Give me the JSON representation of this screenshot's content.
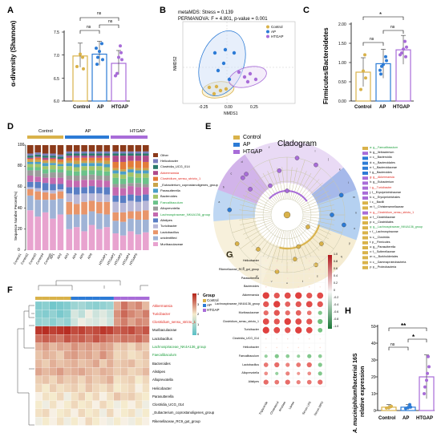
{
  "panels": {
    "A": "A",
    "B": "B",
    "C": "C",
    "D": "D",
    "E": "E",
    "F": "F",
    "G": "G",
    "H": "H"
  },
  "groups": [
    "Control",
    "AP",
    "HTGAP"
  ],
  "colors": {
    "control": "#d9b24a",
    "ap": "#2c7bd6",
    "htgap": "#a86cd8",
    "dark_red": "#8b1a1a",
    "green_sig": "#1a9e3a",
    "red_sig": "#e0241b"
  },
  "panelA": {
    "ylabel": "α-diversity (Shannon)",
    "ylim": [
      6.0,
      7.5
    ],
    "yticks": [
      "6.0",
      "6.5",
      "7.0",
      "7.5"
    ],
    "means": [
      6.98,
      7.02,
      6.82
    ],
    "sig": [
      "ns",
      "ns",
      "ns"
    ]
  },
  "panelB": {
    "line1": "metaMDS: Stress = 0.139",
    "line2": "PERMANOVA: F = 4.801, p-value = 0.001",
    "xlabel": "NMDS1",
    "ylabel": "NMDS2",
    "xticks": [
      "-0.25",
      "0.00",
      "0.25"
    ],
    "legend": [
      "Control",
      "AP",
      "HTGAP"
    ]
  },
  "panelC": {
    "ylabel": "Firmicutes/Bacteroidetes",
    "ylim": [
      0,
      2.0
    ],
    "yticks": [
      "0.00",
      "0.25",
      "0.50",
      "0.75",
      "1.00",
      "1.25",
      "1.50",
      "1.75",
      "2.00"
    ],
    "means": [
      0.75,
      0.97,
      1.33
    ],
    "sig": [
      "ns",
      "ns",
      "*"
    ]
  },
  "panelD": {
    "ylabel": "Sequence Number Percent(%)",
    "yticks": [
      "0",
      "20",
      "40",
      "60",
      "80",
      "100"
    ],
    "samples": [
      "Control1",
      "Control2",
      "Control3",
      "Control4",
      "Control5",
      "AP1",
      "AP2",
      "AP3",
      "AP4",
      "AP5",
      "AP6",
      "HTGAP1",
      "HTGAP2",
      "HTGAP3",
      "HTGAP4",
      "HTGAP5"
    ],
    "legend": [
      "Other",
      "Helicobacter",
      "Clostridia_UCG_014",
      "Akkermansia",
      "Clostridium_sensu_stricto_1",
      "_Eubacterium_coprostanoligenes_group",
      "Parasutterella",
      "Bacteroides",
      "Faecalibaculum",
      "Alloprevotella",
      "Lachnospiraceae_NK4A136_group",
      "Alistipes",
      "Turicibacter",
      "Lactobacillus",
      "unidentified",
      "Muribaculaceae"
    ]
  },
  "panelE": {
    "title": "Cladogram",
    "legend": [
      "Control",
      "AP",
      "HTGAP"
    ],
    "taxa": [
      "g__Faecalibaculum",
      "g__Ileibacterium",
      "c__Bacteroidia",
      "o__Bacteroidales",
      "f__Bacteroidaceae",
      "g__Bacteroides",
      "g__Akkermansia",
      "g__Eubacterium",
      "g__Turicibacter",
      "f__Erysipelotrichaceae",
      "o__Erysipelotrichales",
      "c__Bacilli",
      "f__Christensenellaceae",
      "g__Clostridium_sensu_stricto_1",
      "f__Clostridiaceae",
      "o__Clostridiales",
      "g__Lachnospiraceae_NK4A136_group",
      "f__Lachnospiraceae",
      "c__Clostridia",
      "p__Firmicutes",
      "g__Parasutterella",
      "f__Sutterellaceae",
      "o__Burkholderiales",
      "c__Gammaproteobacteria",
      "p__Proteobacteria"
    ]
  },
  "panelF": {
    "legend_title": "Group",
    "scale": [
      "4",
      "3",
      "2",
      "1",
      "0"
    ],
    "rows": [
      "Akkermansia",
      "Turicibacter",
      "Clostridium_sensu_stricto_1",
      "Muribaculaceae",
      "Lactobacillus",
      "Lachnospiraceae_NK4A136_group",
      "Faecalibaculum",
      "Bacteroides",
      "Alistipes",
      "Alloprevotella",
      "Helicobacter",
      "Parasutterella",
      "Clostridia_UCG_014",
      "_Eubacterium_coprostanoligenes_group",
      "Rikenellaceae_RC9_gut_group"
    ]
  },
  "panelG": {
    "rows": [
      "Helicobacter",
      "Rikenellaceae_RC9_gut_group",
      "Parasutterella",
      "Bacteroides",
      "Akkermansia",
      "Lachnospiraceae_NK4A136_group",
      "Muribaculaceae",
      "Clostridium_sensu_stricto_1",
      "Turicibacter",
      "Clostridia_UCG_014",
      "Helicobacter",
      "Faecalibaculum",
      "Lactobacillus",
      "Alloprevotella",
      "Alistipes"
    ],
    "cols": [
      "Triglyceride",
      "Cholesterol",
      "Amylase",
      "Lipase",
      "Serum LPS",
      "Serum MPO"
    ],
    "scale": [
      "1.0",
      "0.8",
      "0.6",
      "0.4",
      "0.2",
      "0",
      "-0.2",
      "-0.4",
      "-0.6",
      "-0.8",
      "-1.0"
    ]
  },
  "panelH": {
    "ylabel_italic": "A. muciniphilum",
    "ylabel_rest": "/bacterial 16S",
    "ylabel2": "relative expression",
    "ylim": [
      0,
      50
    ],
    "yticks": [
      "0",
      "10",
      "20",
      "30",
      "40",
      "50"
    ],
    "means": [
      2,
      2,
      20
    ],
    "sig": [
      "ns",
      "*",
      "**"
    ]
  }
}
